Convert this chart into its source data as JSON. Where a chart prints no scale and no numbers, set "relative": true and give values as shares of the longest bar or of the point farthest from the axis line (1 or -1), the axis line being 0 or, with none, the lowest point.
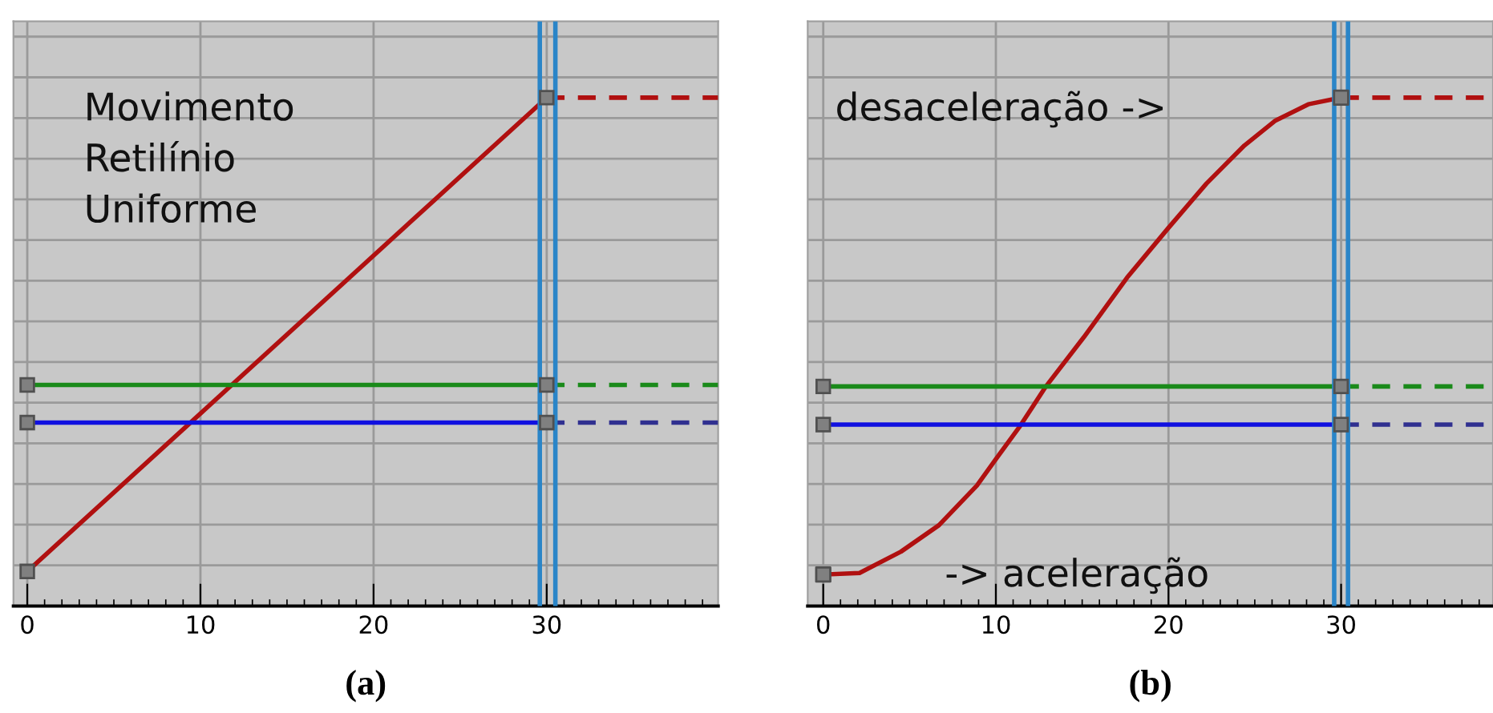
{
  "chart_data": [
    {
      "type": "line",
      "relative": true,
      "xlabel": "(a)",
      "xlim": [
        -0.8,
        39.9
      ],
      "xticks": [
        0,
        10,
        20,
        30
      ],
      "grid": true,
      "tick_labels": "x",
      "annotations": [
        "Movimento\nRetilínio\nUniforme"
      ],
      "series": [
        {
          "color": "#b01010",
          "x": [
            0,
            30
          ],
          "values": [
            0.068,
            1
          ],
          "marker": "square",
          "line_style": "solid"
        },
        {
          "color": "#1a8a1a",
          "x": [
            0,
            30
          ],
          "values": [
            0.435,
            0.435
          ],
          "marker": "square",
          "line_style": "solid"
        },
        {
          "color": "#1010e0",
          "x": [
            0,
            30
          ],
          "values": [
            0.361,
            0.361
          ],
          "marker": "square",
          "line_style": "solid"
        },
        {
          "color": "#b01010",
          "x": [
            30,
            39.9
          ],
          "values": [
            1,
            1
          ],
          "line_style": "dashed"
        },
        {
          "color": "#1a8a1a",
          "x": [
            30,
            39.9
          ],
          "values": [
            0.435,
            0.435
          ],
          "line_style": "dashed"
        },
        {
          "color": "#303090",
          "x": [
            30,
            39.9
          ],
          "values": [
            0.361,
            0.361
          ],
          "line_style": "dashed"
        }
      ],
      "ref_lines": [
        {
          "axis": "x",
          "value": 29.6,
          "color": "#2a85c8"
        },
        {
          "axis": "x",
          "value": 30.5,
          "color": "#2a85c8"
        }
      ]
    },
    {
      "type": "line",
      "relative": true,
      "xlabel": "(b)",
      "xlim": [
        -0.9,
        38.8
      ],
      "xticks": [
        0,
        10,
        20,
        30
      ],
      "grid": true,
      "tick_labels": "x",
      "annotations": [
        "desaceleração ->",
        "-> aceleração"
      ],
      "series": [
        {
          "color": "#b01010",
          "x": [
            0,
            2.1,
            4.5,
            6.7,
            8.9,
            10,
            11.4,
            12.9,
            15.1,
            17.6,
            20,
            22.2,
            24.4,
            26.2,
            28.1,
            30
          ],
          "values": [
            0.062,
            0.065,
            0.107,
            0.159,
            0.237,
            0.289,
            0.354,
            0.432,
            0.529,
            0.646,
            0.744,
            0.831,
            0.906,
            0.955,
            0.987,
            1
          ],
          "line_style": "solid"
        },
        {
          "type": "scatter",
          "color": "#808080",
          "x": [
            0,
            30
          ],
          "values": [
            0.062,
            1
          ],
          "marker": "square"
        },
        {
          "color": "#1a8a1a",
          "x": [
            0,
            30
          ],
          "values": [
            0.432,
            0.432
          ],
          "marker": "square",
          "line_style": "solid"
        },
        {
          "color": "#1010e0",
          "x": [
            0,
            30
          ],
          "values": [
            0.357,
            0.357
          ],
          "marker": "square",
          "line_style": "solid"
        },
        {
          "color": "#b01010",
          "x": [
            30,
            38.8
          ],
          "values": [
            1,
            1
          ],
          "line_style": "dashed"
        },
        {
          "color": "#1a8a1a",
          "x": [
            30,
            38.8
          ],
          "values": [
            0.432,
            0.432
          ],
          "line_style": "dashed"
        },
        {
          "color": "#303090",
          "x": [
            30,
            38.8
          ],
          "values": [
            0.357,
            0.357
          ],
          "line_style": "dashed"
        }
      ],
      "ref_lines": [
        {
          "axis": "x",
          "value": 29.6,
          "color": "#2a85c8"
        },
        {
          "axis": "x",
          "value": 30.4,
          "color": "#2a85c8"
        }
      ]
    }
  ]
}
